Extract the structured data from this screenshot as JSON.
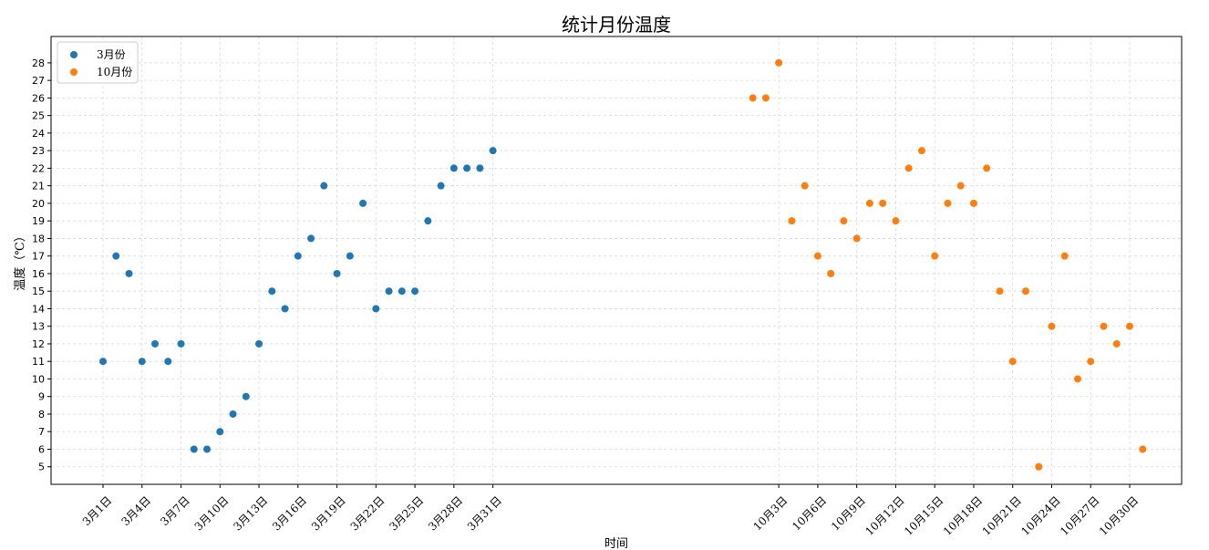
{
  "chart_data": {
    "type": "scatter",
    "title": "统计月份温度",
    "xlabel": "时间",
    "ylabel": "温度（℃）",
    "ylim": [
      4,
      29.5
    ],
    "yticks": [
      5,
      6,
      7,
      8,
      9,
      10,
      11,
      12,
      13,
      14,
      15,
      16,
      17,
      18,
      19,
      20,
      21,
      22,
      23,
      24,
      25,
      26,
      27,
      28
    ],
    "grid": true,
    "legend": "top-left",
    "xlim": [
      -4,
      83
    ],
    "xticks": [
      {
        "x": 0,
        "label": "3月1日"
      },
      {
        "x": 3,
        "label": "3月4日"
      },
      {
        "x": 6,
        "label": "3月7日"
      },
      {
        "x": 9,
        "label": "3月10日"
      },
      {
        "x": 12,
        "label": "3月13日"
      },
      {
        "x": 15,
        "label": "3月16日"
      },
      {
        "x": 18,
        "label": "3月19日"
      },
      {
        "x": 21,
        "label": "3月22日"
      },
      {
        "x": 24,
        "label": "3月25日"
      },
      {
        "x": 27,
        "label": "3月28日"
      },
      {
        "x": 30,
        "label": "3月31日"
      },
      {
        "x": 52,
        "label": "10月3日"
      },
      {
        "x": 55,
        "label": "10月6日"
      },
      {
        "x": 58,
        "label": "10月9日"
      },
      {
        "x": 61,
        "label": "10月12日"
      },
      {
        "x": 64,
        "label": "10月15日"
      },
      {
        "x": 67,
        "label": "10月18日"
      },
      {
        "x": 70,
        "label": "10月21日"
      },
      {
        "x": 73,
        "label": "10月24日"
      },
      {
        "x": 76,
        "label": "10月27日"
      },
      {
        "x": 79,
        "label": "10月30日"
      }
    ],
    "series": [
      {
        "name": "3月份",
        "color": "#1f77b4",
        "x": [
          0,
          1,
          2,
          3,
          4,
          5,
          6,
          7,
          8,
          9,
          10,
          11,
          12,
          13,
          14,
          15,
          16,
          17,
          18,
          19,
          20,
          21,
          22,
          23,
          24,
          25,
          26,
          27,
          28,
          29,
          30
        ],
        "y": [
          11,
          17,
          16,
          11,
          12,
          11,
          12,
          6,
          6,
          7,
          8,
          9,
          12,
          15,
          14,
          17,
          18,
          21,
          16,
          17,
          20,
          14,
          15,
          15,
          15,
          19,
          21,
          22,
          22,
          22,
          23
        ]
      },
      {
        "name": "10月份",
        "color": "#ff7f0e",
        "x": [
          50,
          51,
          52,
          53,
          54,
          55,
          56,
          57,
          58,
          59,
          60,
          61,
          62,
          63,
          64,
          65,
          66,
          67,
          68,
          69,
          70,
          71,
          72,
          73,
          74,
          75,
          76,
          77,
          78,
          79,
          80
        ],
        "y": [
          26,
          26,
          28,
          19,
          21,
          17,
          16,
          19,
          18,
          20,
          20,
          19,
          22,
          23,
          17,
          20,
          21,
          20,
          22,
          15,
          11,
          15,
          5,
          13,
          17,
          10,
          11,
          13,
          12,
          13,
          6
        ]
      }
    ]
  }
}
